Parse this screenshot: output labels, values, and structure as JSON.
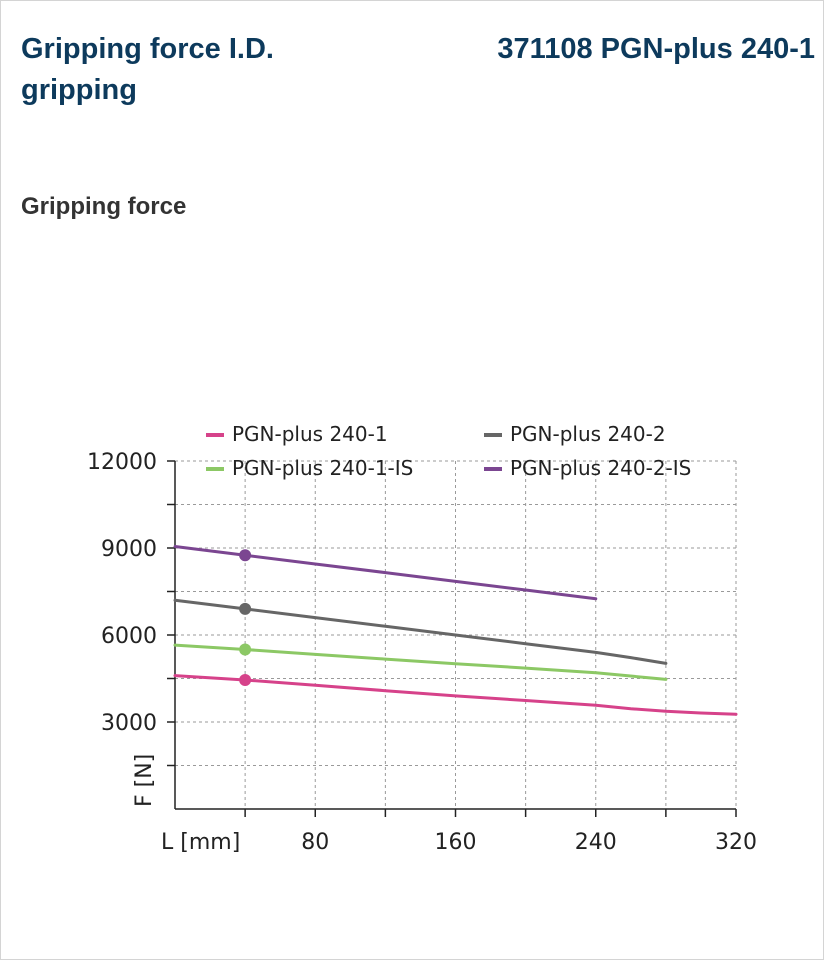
{
  "header": {
    "title": "Gripping force I.D. gripping",
    "product": "371108 PGN-plus 240-1"
  },
  "section_title": "Gripping force",
  "chart_data": {
    "type": "line",
    "title": "",
    "xlabel": "L [mm]",
    "ylabel": "F [N]",
    "xlim": [
      0,
      320
    ],
    "ylim": [
      0,
      12000
    ],
    "x_ticks": [
      80,
      160,
      240,
      320
    ],
    "x_minor_ticks": [
      40,
      120,
      200,
      280
    ],
    "y_ticks": [
      3000,
      6000,
      9000,
      12000
    ],
    "y_minor_ticks": [
      1500,
      4500,
      7500,
      10500
    ],
    "grid": true,
    "legend_position": "top",
    "marker_x": 40,
    "series": [
      {
        "name": "PGN-plus 240-1",
        "color": "#d6428a",
        "points": [
          [
            0,
            4600
          ],
          [
            40,
            4450
          ],
          [
            80,
            4270
          ],
          [
            120,
            4080
          ],
          [
            160,
            3900
          ],
          [
            200,
            3740
          ],
          [
            240,
            3580
          ],
          [
            260,
            3460
          ],
          [
            280,
            3370
          ],
          [
            300,
            3310
          ],
          [
            320,
            3270
          ]
        ],
        "marker_value": 4450
      },
      {
        "name": "PGN-plus 240-2",
        "color": "#666666",
        "points": [
          [
            0,
            7200
          ],
          [
            40,
            6900
          ],
          [
            80,
            6600
          ],
          [
            120,
            6300
          ],
          [
            160,
            6000
          ],
          [
            200,
            5700
          ],
          [
            240,
            5400
          ],
          [
            260,
            5220
          ],
          [
            280,
            5020
          ]
        ],
        "marker_value": 6900
      },
      {
        "name": "PGN-plus 240-1-IS",
        "color": "#8cc865",
        "points": [
          [
            0,
            5650
          ],
          [
            40,
            5500
          ],
          [
            80,
            5330
          ],
          [
            120,
            5170
          ],
          [
            160,
            5010
          ],
          [
            200,
            4860
          ],
          [
            240,
            4700
          ],
          [
            280,
            4470
          ]
        ],
        "marker_value": 5500
      },
      {
        "name": "PGN-plus 240-2-IS",
        "color": "#7b4691",
        "points": [
          [
            0,
            9050
          ],
          [
            40,
            8750
          ],
          [
            80,
            8450
          ],
          [
            120,
            8150
          ],
          [
            160,
            7850
          ],
          [
            200,
            7550
          ],
          [
            240,
            7250
          ]
        ],
        "marker_value": 8750
      }
    ]
  }
}
